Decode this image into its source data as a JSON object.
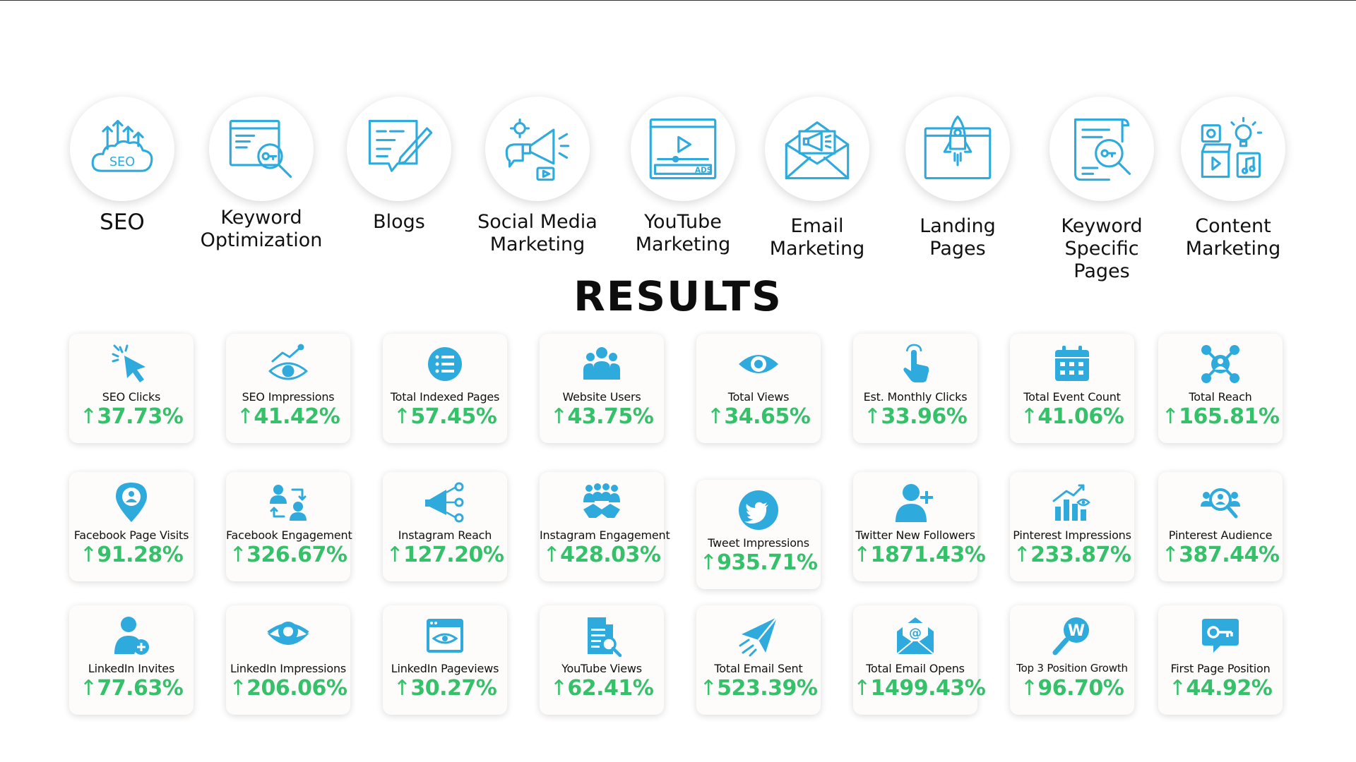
{
  "services": [
    {
      "label": "SEO",
      "icon": "seo-cloud-icon"
    },
    {
      "label": "Keyword\nOptimization",
      "icon": "keyword-search-icon"
    },
    {
      "label": "Blogs",
      "icon": "blog-pencil-icon"
    },
    {
      "label": "Social Media\nMarketing",
      "icon": "megaphone-icon"
    },
    {
      "label": "YouTube\nMarketing",
      "icon": "video-ads-icon"
    },
    {
      "label": "Email\nMarketing",
      "icon": "email-megaphone-icon"
    },
    {
      "label": "Landing\nPages",
      "icon": "rocket-browser-icon"
    },
    {
      "label": "Keyword\nSpecific\nPages",
      "icon": "document-key-icon"
    },
    {
      "label": "Content\nMarketing",
      "icon": "content-media-icon"
    }
  ],
  "results_title": "RESULTS",
  "arrow": "↑",
  "colors": {
    "icon": "#2eaadc",
    "value": "#35c06a",
    "text": "#111111"
  },
  "metrics": [
    [
      {
        "label": "SEO Clicks",
        "value": "37.73%",
        "icon": "cursor-click-icon"
      },
      {
        "label": "SEO Impressions",
        "value": "41.42%",
        "icon": "eye-chart-icon"
      },
      {
        "label": "Total Indexed Pages",
        "value": "57.45%",
        "icon": "list-circle-icon"
      },
      {
        "label": "Website Users",
        "value": "43.75%",
        "icon": "users-group-icon"
      },
      {
        "label": "Total Views",
        "value": "34.65%",
        "icon": "eye-icon"
      },
      {
        "label": "Est. Monthly Clicks",
        "value": "33.96%",
        "icon": "hand-tap-icon"
      },
      {
        "label": "Total Event Count",
        "value": "41.06%",
        "icon": "calendar-icon"
      },
      {
        "label": "Total Reach",
        "value": "165.81%",
        "icon": "network-user-icon"
      }
    ],
    [
      {
        "label": "Facebook Page Visits",
        "value": "91.28%",
        "icon": "location-pin-icon"
      },
      {
        "label": "Facebook Engagement",
        "value": "326.67%",
        "icon": "people-exchange-icon"
      },
      {
        "label": "Instagram Reach",
        "value": "127.20%",
        "icon": "megaphone-network-icon"
      },
      {
        "label": "Instagram Engagement",
        "value": "428.03%",
        "icon": "team-handshake-icon"
      },
      {
        "label": "Tweet Impressions",
        "value": "935.71%",
        "icon": "twitter-bird-icon"
      },
      {
        "label": "Twitter New Followers",
        "value": "1871.43%",
        "icon": "add-user-icon"
      },
      {
        "label": "Pinterest Impressions",
        "value": "233.87%",
        "icon": "bar-chart-growth-icon"
      },
      {
        "label": "Pinterest Audience",
        "value": "387.44%",
        "icon": "audience-search-icon"
      }
    ],
    [
      {
        "label": "LinkedIn Invites",
        "value": "77.63%",
        "icon": "user-add-icon"
      },
      {
        "label": "LinkedIn Impressions",
        "value": "206.06%",
        "icon": "eye-large-icon"
      },
      {
        "label": "LinkedIn Pageviews",
        "value": "30.27%",
        "icon": "browser-eye-icon"
      },
      {
        "label": "YouTube Views",
        "value": "62.41%",
        "icon": "document-search-icon"
      },
      {
        "label": "Total Email Sent",
        "value": "523.39%",
        "icon": "paper-plane-icon"
      },
      {
        "label": "Total Email Opens",
        "value": "1499.43%",
        "icon": "email-open-icon"
      },
      {
        "label": "Top 3 Position Growth",
        "value": "96.70%",
        "icon": "search-w-icon"
      },
      {
        "label": "First Page Position",
        "value": "44.92%",
        "icon": "key-chat-icon"
      }
    ]
  ]
}
